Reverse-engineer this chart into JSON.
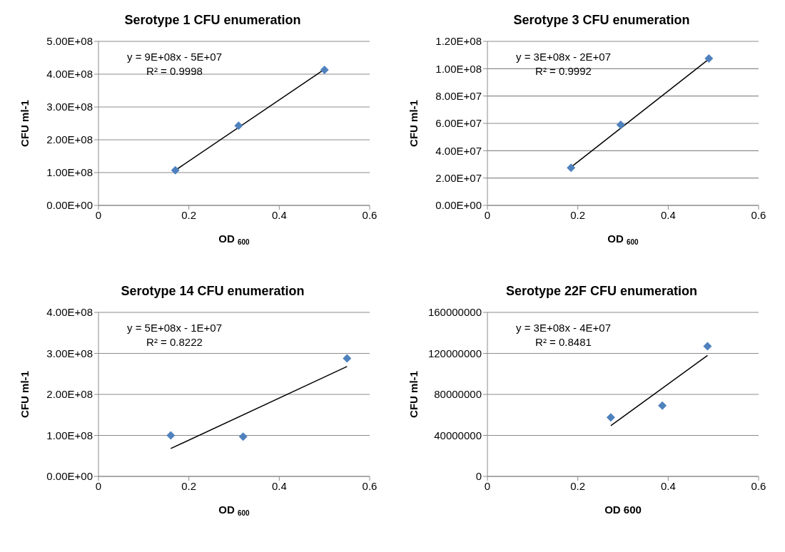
{
  "chart_data": [
    {
      "type": "scatter",
      "title": "Serotype 1 CFU enumeration",
      "xlabel": "OD $_{600}$",
      "ylabel": "CFU ml-1",
      "annotations": [
        "y = 9E+08x - 5E+07",
        "R² = 0.9998"
      ],
      "xlim": [
        0,
        0.6
      ],
      "xticks": [
        0,
        0.2,
        0.4,
        0.6
      ],
      "ylim": [
        0,
        500000000
      ],
      "yticks": [
        {
          "value": 0,
          "label": "0.00E+00"
        },
        {
          "value": 100000000,
          "label": "1.00E+08"
        },
        {
          "value": 200000000,
          "label": "2.00E+08"
        },
        {
          "value": 300000000,
          "label": "3.00E+08"
        },
        {
          "value": 400000000,
          "label": "4.00E+08"
        },
        {
          "value": 500000000,
          "label": "5.00E+08"
        }
      ],
      "grid": "y",
      "series": [
        {
          "marker": "diamond",
          "color": "#4f81bd",
          "x": [
            0.17,
            0.31,
            0.5
          ],
          "values": [
            107000000,
            243000000,
            413000000
          ]
        },
        {
          "type": "line",
          "marker": "none",
          "color": "#000000",
          "x": [
            0.17,
            0.5
          ],
          "values": [
            107000000,
            415000000
          ]
        }
      ]
    },
    {
      "type": "scatter",
      "title": "Serotype 3 CFU enumeration",
      "xlabel": "OD $_{600}$",
      "ylabel": "CFU ml-1",
      "annotations": [
        "y = 3E+08x - 2E+07",
        "R² = 0.9992"
      ],
      "xlim": [
        0,
        0.6
      ],
      "xticks": [
        0,
        0.2,
        0.4,
        0.6
      ],
      "ylim": [
        0,
        120000000
      ],
      "yticks": [
        {
          "value": 0,
          "label": "0.00E+00"
        },
        {
          "value": 20000000,
          "label": "2.00E+07"
        },
        {
          "value": 40000000,
          "label": "4.00E+07"
        },
        {
          "value": 60000000,
          "label": "6.00E+07"
        },
        {
          "value": 80000000,
          "label": "8.00E+07"
        },
        {
          "value": 100000000,
          "label": "1.00E+08"
        },
        {
          "value": 120000000,
          "label": "1.20E+08"
        }
      ],
      "grid": "y",
      "series": [
        {
          "marker": "diamond",
          "color": "#4f81bd",
          "x": [
            0.185,
            0.295,
            0.49
          ],
          "values": [
            27500000,
            59000000,
            107500000
          ]
        },
        {
          "type": "line",
          "marker": "none",
          "color": "#000000",
          "x": [
            0.185,
            0.49
          ],
          "values": [
            28000000,
            107000000
          ]
        }
      ]
    },
    {
      "type": "scatter",
      "title": "Serotype 14 CFU enumeration",
      "xlabel": "OD $_{600}$",
      "ylabel": "CFU ml-1",
      "annotations": [
        "y = 5E+08x - 1E+07",
        "R² = 0.8222"
      ],
      "xlim": [
        0,
        0.6
      ],
      "xticks": [
        0,
        0.2,
        0.4,
        0.6
      ],
      "ylim": [
        0,
        400000000
      ],
      "yticks": [
        {
          "value": 0,
          "label": "0.00E+00"
        },
        {
          "value": 100000000,
          "label": "1.00E+08"
        },
        {
          "value": 200000000,
          "label": "2.00E+08"
        },
        {
          "value": 300000000,
          "label": "3.00E+08"
        },
        {
          "value": 400000000,
          "label": "4.00E+08"
        }
      ],
      "grid": "y",
      "series": [
        {
          "marker": "diamond",
          "color": "#4f81bd",
          "x": [
            0.16,
            0.32,
            0.55
          ],
          "values": [
            100000000,
            97000000,
            288000000
          ]
        },
        {
          "type": "line",
          "marker": "none",
          "color": "#000000",
          "x": [
            0.16,
            0.55
          ],
          "values": [
            68000000,
            268000000
          ]
        }
      ]
    },
    {
      "type": "scatter",
      "title": "Serotype 22F CFU enumeration",
      "xlabel": "OD 600",
      "ylabel": "CFU ml-1",
      "annotations": [
        "y = 3E+08x - 4E+07",
        "R² = 0.8481"
      ],
      "xlim": [
        0,
        0.6
      ],
      "xticks": [
        0,
        0.2,
        0.4,
        0.6
      ],
      "ylim": [
        0,
        160000000
      ],
      "yticks": [
        0,
        40000000,
        80000000,
        120000000,
        160000000
      ],
      "grid": "y",
      "series": [
        {
          "marker": "diamond",
          "color": "#4f81bd",
          "x": [
            0.273,
            0.387,
            0.487
          ],
          "values": [
            57500000,
            69000000,
            127000000
          ]
        },
        {
          "type": "line",
          "marker": "none",
          "color": "#000000",
          "x": [
            0.273,
            0.487
          ],
          "values": [
            49500000,
            118000000
          ]
        }
      ]
    }
  ]
}
